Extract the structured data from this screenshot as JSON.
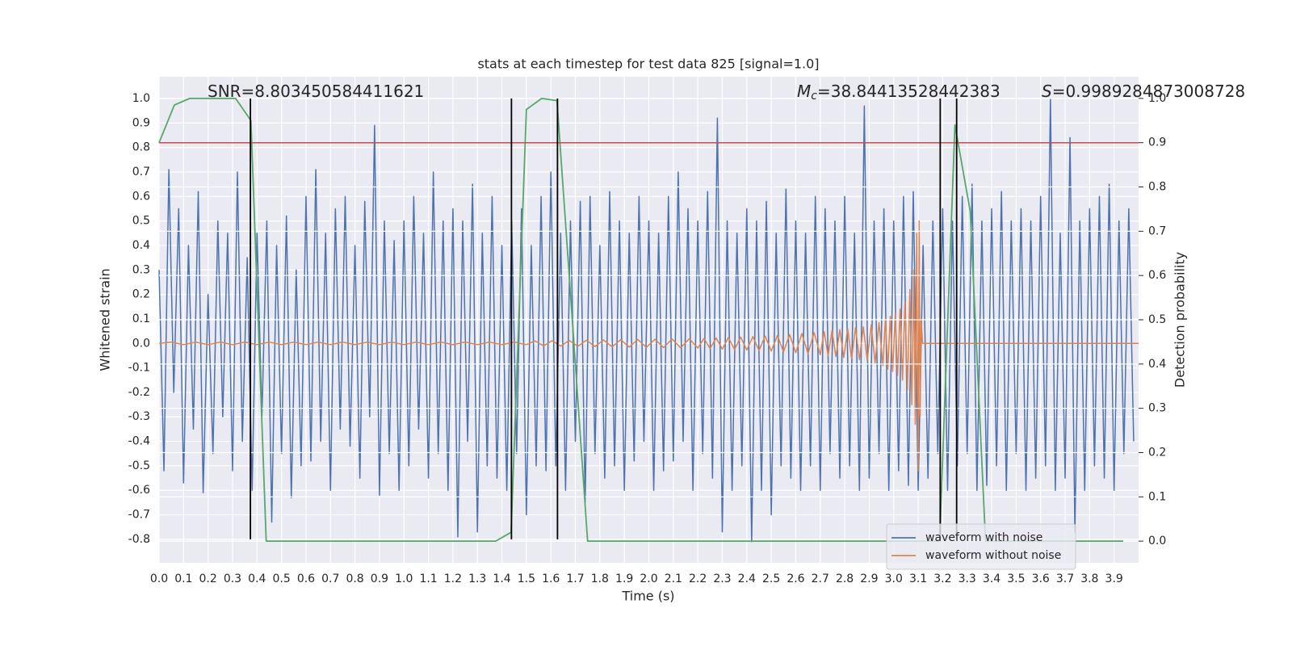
{
  "chart_data": {
    "type": "line",
    "title": "stats at each timestep for test data 825 [signal=1.0]",
    "xlabel": "Time (s)",
    "ylabel": "Whitened strain",
    "y2label": "Detection probability",
    "xlim": [
      0,
      4
    ],
    "ylim": [
      -0.896,
      1.089
    ],
    "y2lim": [
      -0.049,
      1.049
    ],
    "xticks": [
      {
        "value": 0,
        "label": "0.0"
      },
      0.1,
      0.2,
      0.3,
      0.4,
      0.5,
      0.6,
      0.7,
      0.8,
      0.9,
      {
        "value": 1,
        "label": "1.0"
      },
      1.1,
      1.2,
      1.3,
      1.4,
      1.5,
      1.6,
      1.7,
      1.8,
      1.9,
      {
        "value": 2,
        "label": "2.0"
      },
      2.1,
      2.2,
      2.3,
      2.4,
      2.5,
      2.6,
      2.7,
      2.8,
      2.9,
      {
        "value": 3,
        "label": "3.0"
      },
      3.1,
      3.2,
      3.3,
      3.4,
      3.5,
      3.6,
      3.7,
      3.8,
      3.9
    ],
    "yticks": [
      {
        "value": 1,
        "label": "1.0"
      },
      0.9,
      0.8,
      0.7,
      0.6,
      0.5,
      0.4,
      0.3,
      0.2,
      0.1,
      {
        "value": 0,
        "label": "0.0"
      },
      -0.1,
      -0.2,
      -0.3,
      -0.4,
      -0.5,
      -0.6,
      -0.7,
      -0.8
    ],
    "y2ticks": [
      {
        "value": 0,
        "label": "0.0"
      },
      0.1,
      0.2,
      0.3,
      0.4,
      0.5,
      0.6,
      0.7,
      0.8,
      0.9,
      {
        "value": 1,
        "label": "1.0"
      }
    ],
    "grid": true,
    "legend": "lower right",
    "series": [
      {
        "name": "waveform with noise",
        "color": "#4c72b0",
        "x": [
          0,
          0.02,
          0.04,
          0.06,
          0.08,
          0.1,
          0.12,
          0.14,
          0.16,
          0.18,
          0.2,
          0.22,
          0.24,
          0.26,
          0.28,
          0.3,
          0.32,
          0.34,
          0.36,
          0.38,
          0.4,
          0.42,
          0.44,
          0.46,
          0.48,
          0.5,
          0.52,
          0.54,
          0.56,
          0.58,
          0.6,
          0.62,
          0.64,
          0.66,
          0.68,
          0.7,
          0.72,
          0.74,
          0.76,
          0.78,
          0.8,
          0.82,
          0.84,
          0.86,
          0.88,
          0.9,
          0.92,
          0.94,
          0.96,
          0.98,
          1,
          1.02,
          1.04,
          1.06,
          1.08,
          1.1,
          1.12,
          1.14,
          1.16,
          1.18,
          1.2,
          1.22,
          1.24,
          1.26,
          1.28,
          1.3,
          1.32,
          1.34,
          1.36,
          1.38,
          1.4,
          1.42,
          1.44,
          1.46,
          1.48,
          1.5,
          1.52,
          1.54,
          1.56,
          1.58,
          1.6,
          1.62,
          1.64,
          1.66,
          1.68,
          1.7,
          1.72,
          1.74,
          1.76,
          1.78,
          1.8,
          1.82,
          1.84,
          1.86,
          1.88,
          1.9,
          1.92,
          1.94,
          1.96,
          1.98,
          2,
          2.02,
          2.04,
          2.06,
          2.08,
          2.1,
          2.12,
          2.14,
          2.16,
          2.18,
          2.2,
          2.22,
          2.24,
          2.26,
          2.28,
          2.3,
          2.32,
          2.34,
          2.36,
          2.38,
          2.4,
          2.42,
          2.44,
          2.46,
          2.48,
          2.5,
          2.52,
          2.54,
          2.56,
          2.58,
          2.6,
          2.62,
          2.64,
          2.66,
          2.68,
          2.7,
          2.72,
          2.74,
          2.76,
          2.78,
          2.8,
          2.82,
          2.84,
          2.86,
          2.88,
          2.9,
          2.92,
          2.94,
          2.96,
          2.98,
          3,
          3.02,
          3.04,
          3.06,
          3.08,
          3.1,
          3.12,
          3.14,
          3.16,
          3.18,
          3.2,
          3.22,
          3.24,
          3.26,
          3.28,
          3.3,
          3.32,
          3.34,
          3.36,
          3.38,
          3.4,
          3.42,
          3.44,
          3.46,
          3.48,
          3.5,
          3.52,
          3.54,
          3.56,
          3.58,
          3.6,
          3.62,
          3.64,
          3.66,
          3.68,
          3.7,
          3.72,
          3.74,
          3.76,
          3.78,
          3.8,
          3.82,
          3.84,
          3.86,
          3.88,
          3.9,
          3.92,
          3.94,
          3.96,
          3.98
        ],
        "values": [
          0.3,
          -0.52,
          0.71,
          -0.2,
          0.55,
          -0.57,
          0.4,
          -0.35,
          0.62,
          -0.61,
          0.2,
          -0.45,
          0.5,
          -0.3,
          0.45,
          -0.52,
          0.7,
          -0.4,
          0.35,
          -0.6,
          0.45,
          -0.3,
          0.5,
          -0.73,
          0.4,
          -0.45,
          0.52,
          -0.63,
          0.3,
          -0.5,
          0.6,
          -0.48,
          0.71,
          -0.4,
          0.45,
          -0.6,
          0.55,
          -0.35,
          0.6,
          -0.42,
          0.4,
          -0.55,
          0.58,
          -0.3,
          0.89,
          -0.62,
          0.5,
          -0.45,
          0.42,
          -0.6,
          0.5,
          -0.5,
          0.6,
          -0.35,
          0.45,
          -0.55,
          0.7,
          -0.45,
          0.5,
          -0.6,
          0.55,
          -0.79,
          0.5,
          -0.4,
          0.65,
          -0.77,
          0.45,
          -0.5,
          0.6,
          -0.55,
          0.4,
          -0.6,
          0.5,
          -0.45,
          0.55,
          -0.7,
          0.4,
          -0.5,
          0.6,
          -0.52,
          0.7,
          -0.5,
          0.45,
          -0.6,
          0.5,
          -0.4,
          0.58,
          -0.65,
          0.6,
          -0.45,
          0.4,
          -0.55,
          0.62,
          -0.5,
          0.5,
          -0.6,
          0.45,
          -0.48,
          0.6,
          -0.4,
          0.5,
          -0.6,
          0.45,
          -0.52,
          0.6,
          -0.48,
          0.7,
          -0.4,
          0.55,
          -0.6,
          0.5,
          -0.45,
          0.62,
          -0.55,
          0.92,
          -0.77,
          0.5,
          -0.6,
          0.45,
          -0.5,
          0.55,
          -0.81,
          0.5,
          -0.6,
          0.58,
          -0.7,
          0.45,
          -0.5,
          0.63,
          -0.55,
          0.5,
          -0.6,
          0.45,
          -0.5,
          0.6,
          -0.6,
          0.55,
          -0.45,
          0.5,
          -0.55,
          0.6,
          -0.5,
          0.45,
          -0.6,
          0.97,
          -0.55,
          0.5,
          -0.45,
          0.55,
          -0.6,
          0.5,
          -0.52,
          0.6,
          -0.58,
          0.62,
          -0.6,
          0.4,
          -0.55,
          0.5,
          -0.45,
          0.55,
          -0.6,
          0.5,
          -0.5,
          0.6,
          -0.45,
          0.65,
          -0.6,
          0.5,
          -0.58,
          0.55,
          -0.5,
          0.62,
          -0.6,
          0.5,
          -0.45,
          0.55,
          -0.6,
          0.5,
          -0.55,
          0.6,
          -0.5,
          1.0,
          -0.6,
          0.45,
          -0.55,
          0.84,
          -0.77,
          0.5,
          -0.6,
          0.55,
          -0.5,
          0.6,
          -0.55,
          0.65,
          -0.6,
          0.5,
          -0.45,
          0.55,
          -0.4
        ]
      },
      {
        "name": "waveform without noise",
        "color": "#dd8452",
        "x": [
          0,
          0.05,
          0.1,
          0.15,
          0.2,
          0.25,
          0.3,
          0.35,
          0.4,
          0.45,
          0.5,
          0.55,
          0.6,
          0.65,
          0.7,
          0.75,
          0.8,
          0.85,
          0.9,
          0.95,
          1,
          1.05,
          1.1,
          1.15,
          1.2,
          1.25,
          1.3,
          1.35,
          1.4,
          1.45,
          1.5,
          1.535,
          1.57,
          1.605,
          1.64,
          1.675,
          1.71,
          1.745,
          1.78,
          1.815,
          1.85,
          1.885,
          1.92,
          1.955,
          1.99,
          2.025,
          2.06,
          2.095,
          2.13,
          2.165,
          2.2,
          2.225,
          2.25,
          2.275,
          2.3,
          2.325,
          2.35,
          2.375,
          2.4,
          2.425,
          2.45,
          2.475,
          2.5,
          2.525,
          2.55,
          2.575,
          2.6,
          2.625,
          2.65,
          2.675,
          2.7,
          2.716,
          2.732,
          2.748,
          2.764,
          2.78,
          2.796,
          2.812,
          2.828,
          2.844,
          2.86,
          2.876,
          2.892,
          2.908,
          2.924,
          2.94,
          2.956,
          2.966,
          2.976,
          2.986,
          2.996,
          3.006,
          3.016,
          3.026,
          3.036,
          3.046,
          3.056,
          3.066,
          3.074,
          3.082,
          3.088,
          3.094,
          3.1,
          3.104,
          3.108,
          3.112,
          3.118,
          4
        ],
        "values": [
          0,
          0.005,
          -0.005,
          0.005,
          -0.005,
          0.005,
          -0.005,
          0.005,
          -0.005,
          0.005,
          -0.005,
          0.005,
          -0.005,
          0.005,
          -0.005,
          0.005,
          -0.005,
          0.005,
          -0.005,
          0.005,
          -0.005,
          0.005,
          -0.005,
          0.005,
          -0.005,
          0.005,
          -0.005,
          0.005,
          -0.005,
          0.005,
          -0.005,
          0.01,
          -0.01,
          0.011,
          -0.011,
          0.012,
          -0.012,
          0.013,
          -0.013,
          0.014,
          -0.014,
          0.015,
          -0.015,
          0.016,
          -0.016,
          0.017,
          -0.017,
          0.018,
          -0.018,
          0.019,
          -0.019,
          0.02,
          -0.021,
          0.022,
          -0.023,
          0.024,
          -0.025,
          0.026,
          -0.027,
          0.028,
          -0.029,
          0.03,
          -0.031,
          0.032,
          -0.034,
          0.036,
          -0.038,
          0.04,
          -0.042,
          0.044,
          -0.046,
          0.048,
          -0.05,
          0.052,
          -0.054,
          0.056,
          -0.058,
          0.06,
          -0.062,
          0.064,
          -0.066,
          0.068,
          -0.07,
          0.075,
          -0.08,
          0.085,
          -0.09,
          0.1,
          -0.105,
          0.11,
          -0.115,
          0.12,
          -0.13,
          0.14,
          -0.15,
          0.17,
          -0.19,
          0.22,
          -0.25,
          0.3,
          -0.33,
          0.45,
          -0.52,
          0.5,
          -0.3,
          0.1,
          0,
          0
        ]
      },
      {
        "color": "#55a868",
        "axis": "y2",
        "x": [
          0,
          0.0625,
          0.125,
          0.1875,
          0.25,
          0.3125,
          0.375,
          0.4375,
          0.5,
          0.5625,
          0.625,
          0.6875,
          0.75,
          0.8125,
          0.875,
          0.9375,
          1,
          1.0625,
          1.125,
          1.1875,
          1.25,
          1.3125,
          1.375,
          1.4375,
          1.5,
          1.5625,
          1.625,
          1.6875,
          1.75,
          1.8125,
          1.875,
          1.9375,
          2,
          2.0625,
          2.125,
          2.1875,
          2.25,
          2.3125,
          2.375,
          2.4375,
          2.5,
          2.5625,
          2.625,
          2.6875,
          2.75,
          2.8125,
          2.875,
          2.9375,
          3,
          3.0625,
          3.125,
          3.1875,
          3.25,
          3.3125,
          3.375,
          3.4375,
          3.5,
          3.5625,
          3.625,
          3.6875,
          3.75,
          3.8125,
          3.875,
          3.9375
        ],
        "values": [
          0.9,
          0.985,
          1,
          1,
          1,
          1,
          0.95,
          0,
          0,
          0,
          0,
          0,
          0,
          0,
          0,
          0,
          0,
          0,
          0,
          0,
          0,
          0,
          0,
          0.02,
          0.975,
          1,
          0.995,
          0.5,
          0,
          0,
          0,
          0,
          0,
          0,
          0,
          0,
          0,
          0,
          0,
          0,
          0,
          0,
          0,
          0,
          0,
          0,
          0,
          0,
          0,
          0,
          0,
          0,
          0.94,
          0.745,
          0,
          0,
          0,
          0,
          0,
          0,
          0,
          0,
          0,
          0
        ]
      }
    ],
    "hlines": [
      {
        "y": 0.9,
        "axis": "y2",
        "color": "#c44e52"
      }
    ],
    "vlines": {
      "x": [
        0.373,
        1.439,
        1.627,
        3.19,
        3.257
      ],
      "ymin": -0.8,
      "ymax": 1,
      "color": "#000000"
    },
    "annotations": [
      {
        "text": "SNR=8.803450584411621"
      },
      {
        "symbol": "M",
        "subscript": "c",
        "text": "=38.84413528442383"
      },
      {
        "symbol": "S",
        "text": "=0.9989284873008728"
      }
    ]
  }
}
